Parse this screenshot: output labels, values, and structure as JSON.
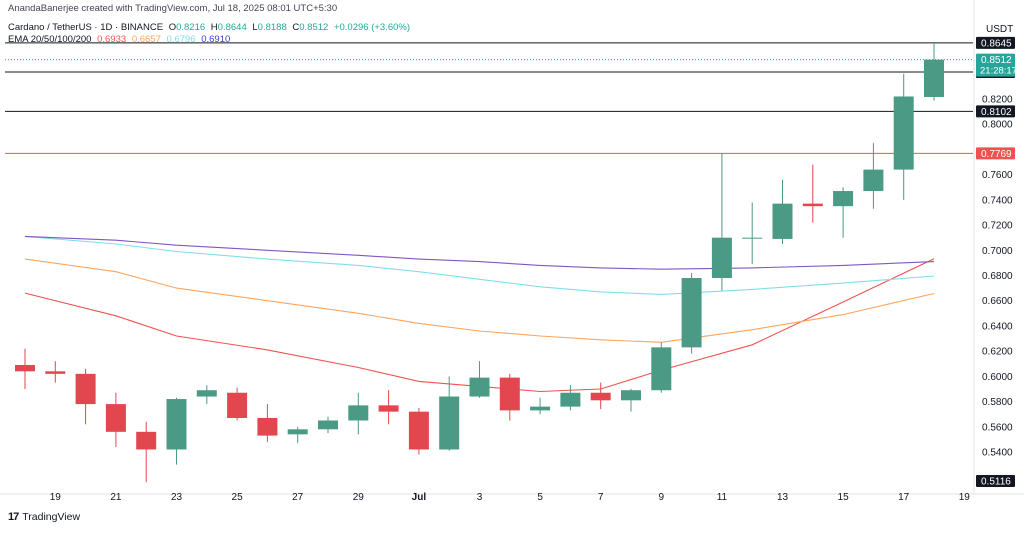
{
  "credit": "AnandaBanerjee created with TradingView.com, Jul 18, 2025 08:01 UTC+5:30",
  "legend": {
    "symbol": "Cardano / TetherUS · 1D · BINANCE",
    "o_label": "O",
    "o_value": "0.8216",
    "h_label": "H",
    "h_value": "0.8644",
    "l_label": "L",
    "l_value": "0.8188",
    "c_label": "C",
    "c_value": "0.8512",
    "change": "+0.0296 (+3.60%)",
    "ema_label": "EMA 20/50/100/200",
    "ema_values": [
      "0.6933",
      "0.6657",
      "0.6796",
      "0.6910"
    ]
  },
  "brand": {
    "name": "TradingView"
  },
  "chart_data": {
    "type": "candlestick",
    "currency": "USDT",
    "x_ticks": [
      "19",
      "21",
      "23",
      "25",
      "27",
      "29",
      "Jul",
      "3",
      "5",
      "7",
      "9",
      "11",
      "13",
      "15",
      "17",
      "19"
    ],
    "y_ticks": [
      "0.5400",
      "0.5600",
      "0.5800",
      "0.6000",
      "0.6200",
      "0.6400",
      "0.6600",
      "0.6800",
      "0.7000",
      "0.7200",
      "0.7400",
      "0.7600",
      "0.8000",
      "0.8200"
    ],
    "ylim": [
      0.512,
      0.866
    ],
    "candles": [
      {
        "date": "Jun 18",
        "o": 0.609,
        "h": 0.622,
        "l": 0.59,
        "c": 0.604
      },
      {
        "date": "Jun 19",
        "o": 0.604,
        "h": 0.612,
        "l": 0.595,
        "c": 0.602
      },
      {
        "date": "Jun 20",
        "o": 0.602,
        "h": 0.606,
        "l": 0.562,
        "c": 0.578
      },
      {
        "date": "Jun 21",
        "o": 0.578,
        "h": 0.587,
        "l": 0.544,
        "c": 0.556
      },
      {
        "date": "Jun 22",
        "o": 0.556,
        "h": 0.564,
        "l": 0.516,
        "c": 0.542
      },
      {
        "date": "Jun 23",
        "o": 0.542,
        "h": 0.583,
        "l": 0.53,
        "c": 0.582
      },
      {
        "date": "Jun 24",
        "o": 0.584,
        "h": 0.593,
        "l": 0.578,
        "c": 0.589
      },
      {
        "date": "Jun 25",
        "o": 0.587,
        "h": 0.591,
        "l": 0.565,
        "c": 0.567
      },
      {
        "date": "Jun 26",
        "o": 0.567,
        "h": 0.578,
        "l": 0.548,
        "c": 0.553
      },
      {
        "date": "Jun 27",
        "o": 0.554,
        "h": 0.56,
        "l": 0.547,
        "c": 0.558
      },
      {
        "date": "Jun 28",
        "o": 0.558,
        "h": 0.568,
        "l": 0.555,
        "c": 0.565
      },
      {
        "date": "Jun 29",
        "o": 0.565,
        "h": 0.587,
        "l": 0.554,
        "c": 0.577
      },
      {
        "date": "Jun 30",
        "o": 0.577,
        "h": 0.589,
        "l": 0.562,
        "c": 0.572
      },
      {
        "date": "Jul 1",
        "o": 0.572,
        "h": 0.575,
        "l": 0.538,
        "c": 0.542
      },
      {
        "date": "Jul 2",
        "o": 0.542,
        "h": 0.6,
        "l": 0.541,
        "c": 0.584
      },
      {
        "date": "Jul 3",
        "o": 0.584,
        "h": 0.612,
        "l": 0.583,
        "c": 0.599
      },
      {
        "date": "Jul 4",
        "o": 0.599,
        "h": 0.602,
        "l": 0.565,
        "c": 0.573
      },
      {
        "date": "Jul 5",
        "o": 0.573,
        "h": 0.583,
        "l": 0.57,
        "c": 0.576
      },
      {
        "date": "Jul 6",
        "o": 0.576,
        "h": 0.593,
        "l": 0.573,
        "c": 0.587
      },
      {
        "date": "Jul 7",
        "o": 0.587,
        "h": 0.595,
        "l": 0.574,
        "c": 0.581
      },
      {
        "date": "Jul 8",
        "o": 0.581,
        "h": 0.59,
        "l": 0.572,
        "c": 0.589
      },
      {
        "date": "Jul 9",
        "o": 0.589,
        "h": 0.627,
        "l": 0.587,
        "c": 0.623
      },
      {
        "date": "Jul 10",
        "o": 0.623,
        "h": 0.682,
        "l": 0.618,
        "c": 0.678
      },
      {
        "date": "Jul 11",
        "o": 0.678,
        "h": 0.777,
        "l": 0.668,
        "c": 0.71
      },
      {
        "date": "Jul 12",
        "o": 0.71,
        "h": 0.738,
        "l": 0.689,
        "c": 0.71
      },
      {
        "date": "Jul 13",
        "o": 0.709,
        "h": 0.756,
        "l": 0.705,
        "c": 0.737
      },
      {
        "date": "Jul 14",
        "o": 0.737,
        "h": 0.768,
        "l": 0.722,
        "c": 0.735
      },
      {
        "date": "Jul 15",
        "o": 0.735,
        "h": 0.75,
        "l": 0.71,
        "c": 0.747
      },
      {
        "date": "Jul 16",
        "o": 0.747,
        "h": 0.785,
        "l": 0.733,
        "c": 0.764
      },
      {
        "date": "Jul 17",
        "o": 0.764,
        "h": 0.84,
        "l": 0.74,
        "c": 0.822
      },
      {
        "date": "Jul 18",
        "o": 0.8216,
        "h": 0.8644,
        "l": 0.8188,
        "c": 0.8512
      }
    ],
    "ema": [
      {
        "name": "EMA 20",
        "color": "#ef5350",
        "values": [
          0.666,
          0.648,
          0.632,
          0.621,
          0.607,
          0.596,
          0.592,
          0.588,
          0.59,
          0.605,
          0.625,
          0.659,
          0.6933
        ]
      },
      {
        "name": "EMA 50",
        "color": "#ffa55c",
        "values": [
          0.693,
          0.683,
          0.67,
          0.66,
          0.65,
          0.642,
          0.636,
          0.632,
          0.629,
          0.627,
          0.637,
          0.649,
          0.6657
        ]
      },
      {
        "name": "EMA 100",
        "color": "#80deea",
        "values": [
          0.711,
          0.705,
          0.699,
          0.693,
          0.688,
          0.683,
          0.677,
          0.671,
          0.667,
          0.665,
          0.669,
          0.674,
          0.6796
        ]
      },
      {
        "name": "EMA 200",
        "color": "#7e57c2",
        "values": [
          0.711,
          0.708,
          0.704,
          0.7,
          0.696,
          0.693,
          0.691,
          0.688,
          0.686,
          0.685,
          0.686,
          0.688,
          0.691
        ]
      }
    ],
    "ema_dates": [
      "Jun 18",
      "Jun 21",
      "Jun 23",
      "Jun 26",
      "Jun 29",
      "Jul 1",
      "Jul 3",
      "Jul 5",
      "Jul 7",
      "Jul 9",
      "Jul 12",
      "Jul 15",
      "Jul 18"
    ],
    "horizontal_lines": [
      {
        "value": 0.8645,
        "label": "0.8645",
        "color": "#131722"
      },
      {
        "value": 0.8414,
        "label": "0.8414",
        "color": "#131722"
      },
      {
        "value": 0.8102,
        "label": "0.8102",
        "color": "#131722"
      },
      {
        "value": 0.7769,
        "label": "0.7769",
        "color": "#ef5350"
      }
    ],
    "current_price": {
      "value": 0.8512,
      "label": "0.8512",
      "countdown": "21:28:17",
      "color": "#26a69a"
    },
    "bottom_label": {
      "value": 0.5116,
      "label": "0.5116"
    },
    "up_color": "#4a9a85",
    "down_color": "#e2464f"
  }
}
